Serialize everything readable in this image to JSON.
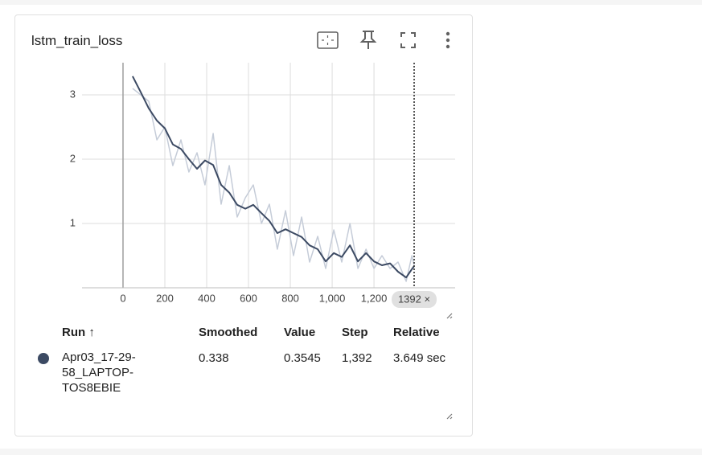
{
  "card": {
    "title": "lstm_train_loss"
  },
  "chart_data": {
    "type": "line",
    "x": [
      46,
      85,
      123,
      162,
      200,
      238,
      277,
      315,
      354,
      392,
      431,
      469,
      508,
      546,
      585,
      623,
      662,
      700,
      738,
      777,
      815,
      854,
      892,
      931,
      969,
      1008,
      1046,
      1085,
      1123,
      1162,
      1200,
      1238,
      1277,
      1315,
      1354,
      1381,
      1392
    ],
    "series": [
      {
        "color": "#c5ccd8",
        "values": [
          3.1,
          3.0,
          2.9,
          2.3,
          2.5,
          1.9,
          2.3,
          1.8,
          2.1,
          1.6,
          2.4,
          1.3,
          1.9,
          1.1,
          1.4,
          1.6,
          1.0,
          1.3,
          0.6,
          1.2,
          0.5,
          1.1,
          0.4,
          0.8,
          0.3,
          0.9,
          0.4,
          1.0,
          0.3,
          0.6,
          0.3,
          0.5,
          0.3,
          0.4,
          0.1,
          0.5,
          0.3545
        ]
      },
      {
        "color": "#3c4a63",
        "values": [
          3.29,
          3.04,
          2.79,
          2.6,
          2.48,
          2.23,
          2.16,
          2.0,
          1.85,
          1.98,
          1.91,
          1.6,
          1.48,
          1.29,
          1.23,
          1.29,
          1.16,
          1.04,
          0.85,
          0.91,
          0.85,
          0.79,
          0.66,
          0.6,
          0.41,
          0.54,
          0.48,
          0.66,
          0.41,
          0.54,
          0.41,
          0.35,
          0.38,
          0.25,
          0.16,
          0.29,
          0.338
        ]
      }
    ],
    "xlim": [
      -196,
      1588
    ],
    "ylim": [
      0,
      3.5
    ],
    "xticks": [
      0,
      200,
      400,
      600,
      800,
      {
        "value": 1000,
        "label": "1,000"
      },
      {
        "value": 1200,
        "label": "1,200"
      }
    ],
    "yticks": [
      1,
      2,
      3
    ],
    "grid": true,
    "cursor": {
      "value": 1392,
      "label": "1392 ×"
    }
  },
  "table": {
    "headers": [
      "Run ↑",
      "Smoothed",
      "Value",
      "Step",
      "Relative"
    ],
    "rows": [
      [
        "Apr03_17-29-58_LAPTOP-TOS8EBIE",
        "0.338",
        "0.3545",
        "1,392",
        "3.649 sec"
      ]
    ]
  }
}
